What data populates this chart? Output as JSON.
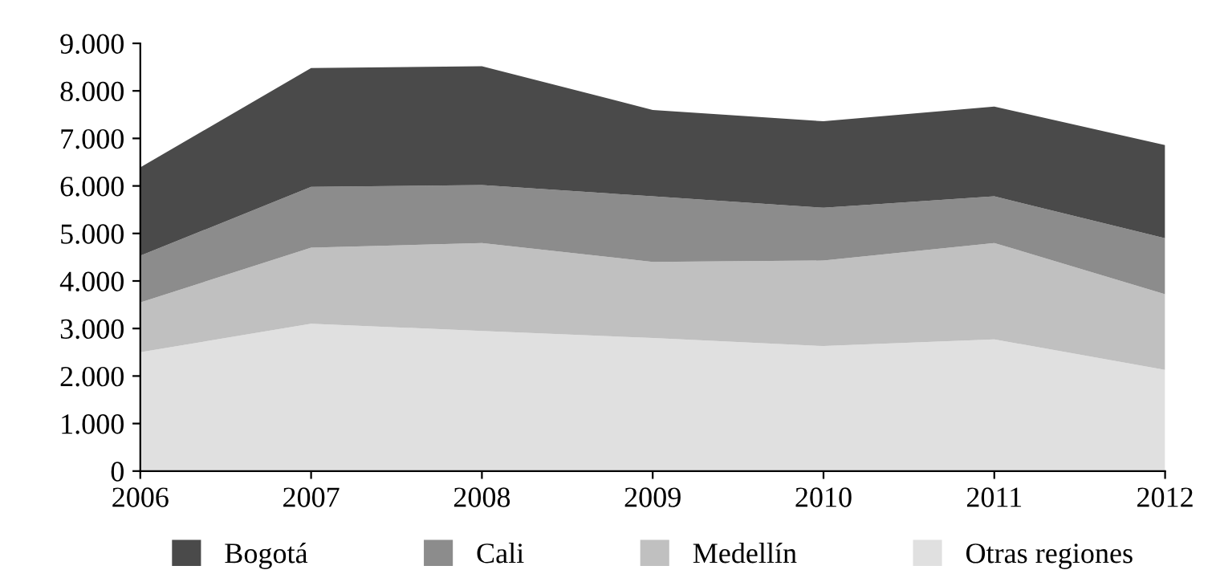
{
  "chart_data": {
    "type": "area",
    "stacked": true,
    "x": [
      2006,
      2007,
      2008,
      2009,
      2010,
      2011,
      2012
    ],
    "series": [
      {
        "name": "Otras regiones",
        "color": "#e0e0e0",
        "values": [
          2500,
          3100,
          2950,
          2800,
          2630,
          2770,
          2130
        ]
      },
      {
        "name": "Medellín",
        "color": "#c0c0c0",
        "values": [
          1050,
          1600,
          1850,
          1600,
          1800,
          2030,
          1590
        ]
      },
      {
        "name": "Cali",
        "color": "#8c8c8c",
        "values": [
          980,
          1280,
          1220,
          1380,
          1110,
          980,
          1180
        ]
      },
      {
        "name": "Bogotá",
        "color": "#4a4a4a",
        "values": [
          1860,
          2500,
          2500,
          1820,
          1820,
          1890,
          1960
        ]
      }
    ],
    "xlim": [
      2006,
      2012
    ],
    "xticks": [
      2006,
      2007,
      2008,
      2009,
      2010,
      2011,
      2012
    ],
    "ylim": [
      0,
      9000
    ],
    "yticks": [
      0,
      {
        "value": 1000,
        "label": "1.000"
      },
      {
        "value": 2000,
        "label": "2.000"
      },
      {
        "value": 3000,
        "label": "3.000"
      },
      {
        "value": 4000,
        "label": "4.000"
      },
      {
        "value": 5000,
        "label": "5.000"
      },
      {
        "value": 6000,
        "label": "6.000"
      },
      {
        "value": 7000,
        "label": "7.000"
      },
      {
        "value": 8000,
        "label": "8.000"
      },
      {
        "value": 9000,
        "label": "9.000"
      }
    ],
    "grid": false,
    "legend": "bottom"
  }
}
